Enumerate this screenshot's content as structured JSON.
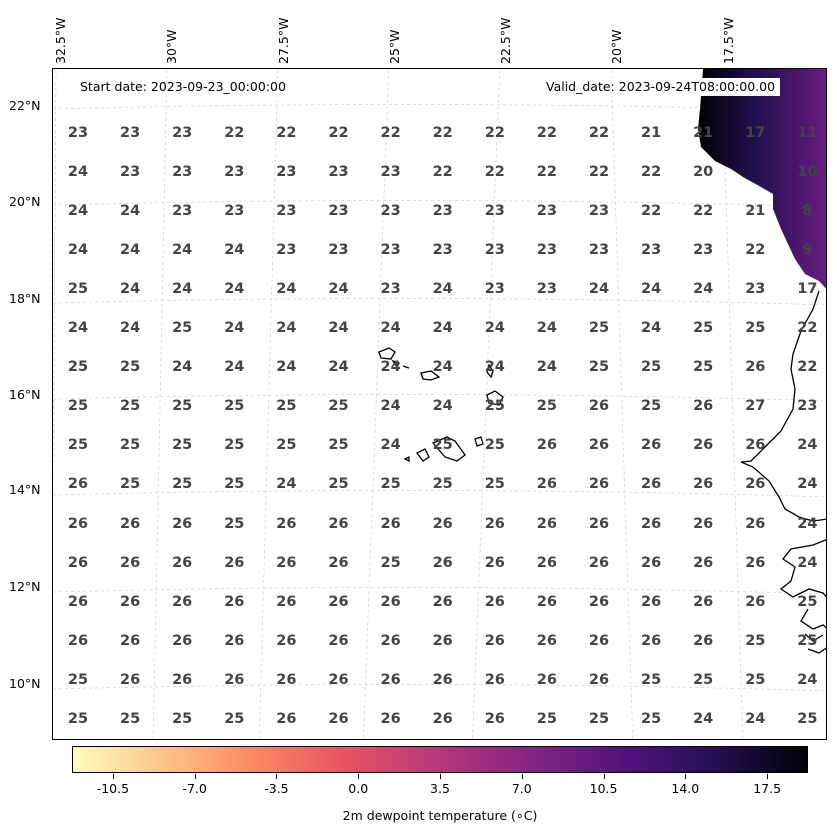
{
  "map": {
    "start_date": "Start date: 2023-09-23_00:00:00",
    "valid_date": "Valid_date: 2023-09-24T08:00:00.00",
    "lon_labels": [
      "32.5°W",
      "30°W",
      "27.5°W",
      "25°W",
      "22.5°W",
      "20°W",
      "17.5°W"
    ],
    "lat_labels": [
      "22°N",
      "20°N",
      "18°N",
      "16°N",
      "14°N",
      "12°N",
      "10°N"
    ],
    "grid_rows": [
      [
        "23",
        "23",
        "23",
        "22",
        "22",
        "22",
        "22",
        "22",
        "22",
        "22",
        "22",
        "21",
        "21",
        "17",
        "11"
      ],
      [
        "24",
        "23",
        "23",
        "23",
        "23",
        "23",
        "23",
        "22",
        "22",
        "22",
        "22",
        "22",
        "20",
        "",
        "10"
      ],
      [
        "24",
        "24",
        "23",
        "23",
        "23",
        "23",
        "23",
        "23",
        "23",
        "23",
        "23",
        "22",
        "22",
        "21",
        "8"
      ],
      [
        "24",
        "24",
        "24",
        "24",
        "23",
        "23",
        "23",
        "23",
        "23",
        "23",
        "23",
        "23",
        "23",
        "22",
        "9"
      ],
      [
        "25",
        "24",
        "24",
        "24",
        "24",
        "24",
        "23",
        "24",
        "23",
        "23",
        "24",
        "24",
        "24",
        "23",
        "17"
      ],
      [
        "24",
        "24",
        "25",
        "24",
        "24",
        "24",
        "24",
        "24",
        "24",
        "24",
        "25",
        "24",
        "25",
        "25",
        "22"
      ],
      [
        "25",
        "25",
        "24",
        "24",
        "24",
        "24",
        "24",
        "24",
        "24",
        "24",
        "25",
        "25",
        "25",
        "26",
        "22"
      ],
      [
        "25",
        "25",
        "25",
        "25",
        "25",
        "25",
        "24",
        "24",
        "25",
        "25",
        "26",
        "25",
        "26",
        "27",
        "23"
      ],
      [
        "25",
        "25",
        "25",
        "25",
        "25",
        "25",
        "24",
        "25",
        "25",
        "26",
        "26",
        "26",
        "26",
        "26",
        "24"
      ],
      [
        "26",
        "25",
        "25",
        "25",
        "24",
        "25",
        "25",
        "25",
        "25",
        "26",
        "26",
        "26",
        "26",
        "26",
        "24"
      ],
      [
        "26",
        "26",
        "26",
        "25",
        "26",
        "26",
        "26",
        "26",
        "26",
        "26",
        "26",
        "26",
        "26",
        "26",
        "24"
      ],
      [
        "26",
        "26",
        "26",
        "26",
        "26",
        "26",
        "25",
        "26",
        "26",
        "26",
        "26",
        "26",
        "26",
        "26",
        "24"
      ],
      [
        "26",
        "26",
        "26",
        "26",
        "26",
        "26",
        "26",
        "26",
        "26",
        "26",
        "26",
        "26",
        "26",
        "26",
        "25"
      ],
      [
        "26",
        "26",
        "26",
        "26",
        "26",
        "26",
        "26",
        "26",
        "26",
        "26",
        "26",
        "26",
        "26",
        "25",
        "25"
      ],
      [
        "25",
        "26",
        "26",
        "26",
        "26",
        "26",
        "26",
        "26",
        "26",
        "26",
        "26",
        "25",
        "25",
        "25",
        "24"
      ],
      [
        "25",
        "25",
        "25",
        "25",
        "26",
        "26",
        "26",
        "26",
        "26",
        "25",
        "25",
        "25",
        "24",
        "24",
        "25"
      ]
    ]
  },
  "colorbar": {
    "title": "2m dewpoint temperature ($^\\circ$C)",
    "title_display": "2m dewpoint temperature (∘C)",
    "ticks": [
      "-10.5",
      "-7.0",
      "-3.5",
      "0.0",
      "3.5",
      "7.0",
      "10.5",
      "14.0",
      "17.5"
    ],
    "min": -12.25,
    "max": 19.25,
    "colormap": "magma_r",
    "stops": [
      "#fcfdbf",
      "#fec287",
      "#fb8761",
      "#e55064",
      "#b5367a",
      "#812581",
      "#51127c",
      "#221150",
      "#000004"
    ]
  },
  "colors": {
    "value_text": "#444444",
    "grid_lines": "#cccccc",
    "land_fill": "#4b1a6e"
  }
}
